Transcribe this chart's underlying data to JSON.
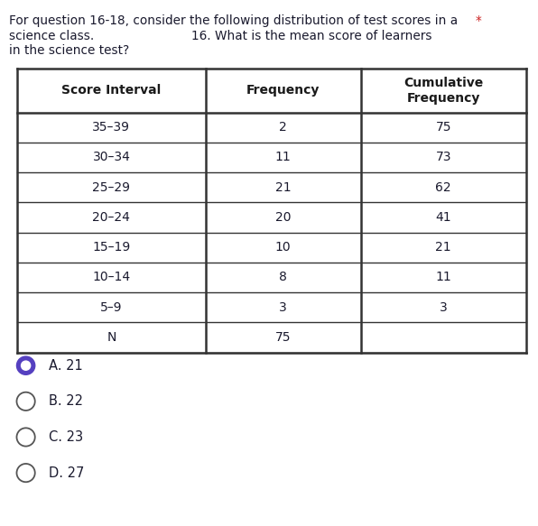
{
  "title_line1": "For question 16-18, consider the following distribution of test scores in a",
  "title_asterisk": "*",
  "title_line2": "science class.",
  "title_line3": "in the science test?",
  "question_text": "16. What is the mean score of learners",
  "col_headers": [
    "Score Interval",
    "Frequency",
    "Cumulative\nFrequency"
  ],
  "rows": [
    [
      "35–39",
      "2",
      "75"
    ],
    [
      "30–34",
      "11",
      "73"
    ],
    [
      "25–29",
      "21",
      "62"
    ],
    [
      "20–24",
      "20",
      "41"
    ],
    [
      "15–19",
      "10",
      "21"
    ],
    [
      "10–14",
      "8",
      "11"
    ],
    [
      "5–9",
      "3",
      "3"
    ],
    [
      "N",
      "75",
      ""
    ]
  ],
  "options": [
    "A. 21",
    "B. 22",
    "C. 23",
    "D. 27"
  ],
  "selected_option": 0,
  "bg_color": "#ffffff",
  "text_color": "#1a1a2e",
  "header_color": "#1a1a1a",
  "table_border_color": "#333333",
  "option_circle_selected_color": "#5540c0",
  "option_circle_unselected_color": "#555555",
  "asterisk_color": "#cc2222",
  "title_text_color": "#1a1a2e"
}
